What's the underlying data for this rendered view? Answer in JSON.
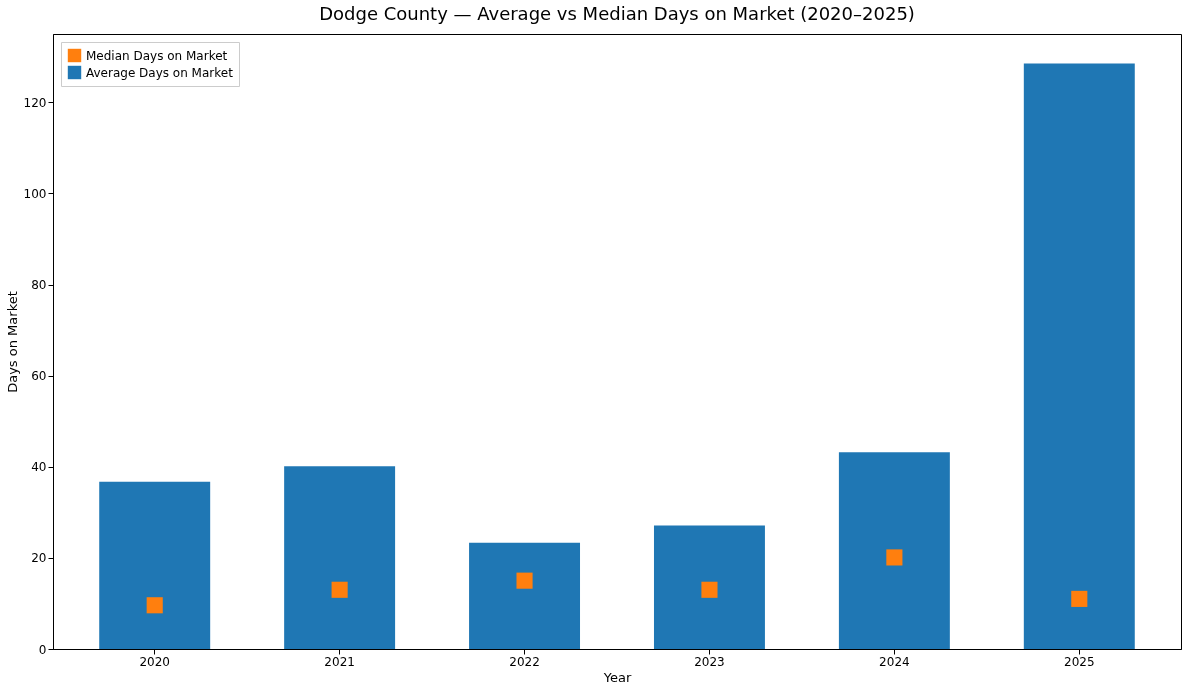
{
  "chart_data": {
    "type": "bar",
    "title": "Dodge County — Average vs Median Days on Market (2020–2025)",
    "xlabel": "Year",
    "ylabel": "Days on Market",
    "categories": [
      "2020",
      "2021",
      "2022",
      "2023",
      "2024",
      "2025"
    ],
    "series": [
      {
        "name": "Median Days on Market",
        "type": "scatter",
        "color": "#ff7f0e",
        "values": [
          9.6,
          13.0,
          15.0,
          13.0,
          20.1,
          11.0
        ]
      },
      {
        "name": "Average Days on Market",
        "color": "#1f77b4",
        "values": [
          36.7,
          40.1,
          23.3,
          27.1,
          43.2,
          128.5
        ]
      }
    ],
    "ylim": [
      0,
      135
    ],
    "yticks": [
      0,
      20,
      40,
      60,
      80,
      100,
      120
    ],
    "marker": "square",
    "legend": "top left",
    "grid": false
  }
}
